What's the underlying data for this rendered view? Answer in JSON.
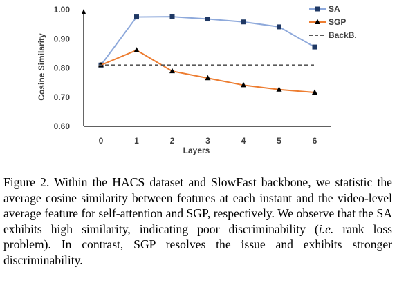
{
  "chart_data": {
    "type": "line",
    "x": [
      0,
      1,
      2,
      3,
      4,
      5,
      6
    ],
    "xlabel": "Layers",
    "ylabel": "Cosine Similarity",
    "ylim": [
      0.6,
      1.0
    ],
    "yticks": [
      "0.60",
      "0.70",
      "0.80",
      "0.90",
      "1.00"
    ],
    "xticks": [
      "0",
      "1",
      "2",
      "3",
      "4",
      "5",
      "6"
    ],
    "legend_position": "top-right",
    "series": [
      {
        "name": "SA",
        "color": "#8EA9DB",
        "marker": "square",
        "marker_color": "#1F3864",
        "dash": "solid",
        "values": [
          0.81,
          0.975,
          0.976,
          0.968,
          0.958,
          0.941,
          0.872
        ]
      },
      {
        "name": "SGP",
        "color": "#ED7D31",
        "marker": "triangle",
        "marker_color": "#000000",
        "dash": "solid",
        "values": [
          0.81,
          0.861,
          0.789,
          0.765,
          0.741,
          0.726,
          0.716
        ]
      },
      {
        "name": "BackB.",
        "color": "#595959",
        "marker": "none",
        "dash": "dashed",
        "values": [
          0.81,
          0.81,
          0.81,
          0.81,
          0.81,
          0.81,
          0.81
        ]
      }
    ]
  },
  "caption": {
    "prefix": "Figure 2. Within the HACS dataset and SlowFast backbone, we statistic the average cosine similarity between features at each instant and the video-level average feature for self-attention and SGP, respectively. We observe that the SA exhibits high similarity, indicating poor discriminability (",
    "italic": "i.e.",
    "suffix": " rank loss problem). In contrast, SGP resolves the issue and exhibits stronger discriminability."
  }
}
